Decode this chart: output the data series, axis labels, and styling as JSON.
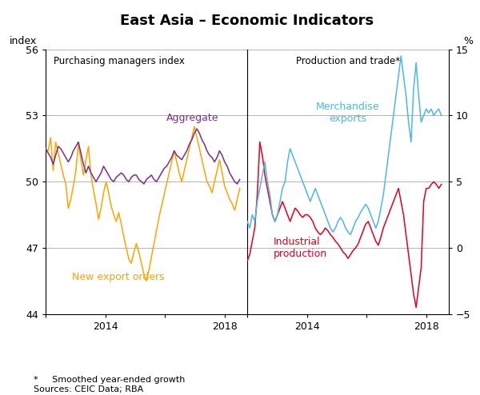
{
  "title": "East Asia – Economic Indicators",
  "left_panel_title": "Purchasing managers index",
  "right_panel_title": "Production and trade*",
  "left_ylabel": "index",
  "right_ylabel": "%",
  "left_ylim": [
    44,
    56
  ],
  "right_ylim": [
    -5,
    15
  ],
  "left_yticks": [
    44,
    47,
    50,
    53,
    56
  ],
  "right_yticks": [
    -5,
    0,
    5,
    10,
    15
  ],
  "xlim": [
    2012.0,
    2018.75
  ],
  "xticks": [
    2012,
    2014,
    2016,
    2018
  ],
  "footnote": "*     Smoothed year-ended growth\nSources: CEIC Data; RBA",
  "color_aggregate": "#7B2D8B",
  "color_new_export": "#FFA500",
  "color_merchandise": "#4DB8E8",
  "color_industrial": "#E8001C",
  "label_aggregate": "Aggregate",
  "label_new_export": "New export orders",
  "label_merchandise": "Merchandise\nexports",
  "label_industrial": "Industrial\nproduction",
  "grid_color": "#AAAAAA",
  "background_color": "#FFFFFF",
  "agg_pmi": [
    51.5,
    51.3,
    51.1,
    50.8,
    51.2,
    51.6,
    51.5,
    51.3,
    51.1,
    50.9,
    51.1,
    51.4,
    51.6,
    51.8,
    51.3,
    50.8,
    50.4,
    50.7,
    50.4,
    50.2,
    50.0,
    50.2,
    50.4,
    50.7,
    50.5,
    50.3,
    50.1,
    50.0,
    50.2,
    50.3,
    50.4,
    50.3,
    50.1,
    50.0,
    50.2,
    50.3,
    50.3,
    50.1,
    50.0,
    49.9,
    50.1,
    50.2,
    50.3,
    50.1,
    50.0,
    50.2,
    50.4,
    50.6,
    50.7,
    50.9,
    51.1,
    51.4,
    51.2,
    51.1,
    51.0,
    51.2,
    51.4,
    51.7,
    51.9,
    52.2,
    52.4,
    52.2,
    51.9,
    51.7,
    51.4,
    51.2,
    51.1,
    50.9,
    51.1,
    51.4,
    51.2,
    50.9,
    50.7,
    50.4,
    50.2,
    50.0,
    49.9,
    50.1
  ],
  "neo_pmi": [
    51.5,
    51.4,
    52.0,
    50.5,
    51.8,
    51.3,
    50.8,
    50.3,
    49.9,
    48.8,
    49.2,
    49.8,
    50.5,
    51.7,
    51.0,
    50.3,
    51.0,
    51.6,
    50.3,
    49.6,
    49.0,
    48.3,
    48.8,
    49.5,
    50.0,
    49.5,
    48.9,
    48.5,
    48.2,
    48.6,
    48.1,
    47.5,
    47.0,
    46.5,
    46.3,
    46.8,
    47.2,
    46.8,
    46.3,
    45.8,
    45.5,
    46.0,
    46.6,
    47.2,
    47.8,
    48.4,
    48.9,
    49.4,
    49.9,
    50.4,
    50.9,
    51.4,
    50.9,
    50.4,
    50.0,
    50.5,
    51.0,
    51.5,
    52.0,
    52.5,
    52.0,
    51.5,
    51.0,
    50.5,
    50.0,
    49.8,
    49.5,
    50.0,
    50.5,
    51.0,
    50.4,
    49.8,
    49.5,
    49.2,
    49.0,
    48.7,
    49.2,
    49.7
  ],
  "merch_exports": [
    2.0,
    1.5,
    2.5,
    2.0,
    3.5,
    4.5,
    5.5,
    6.5,
    5.0,
    4.0,
    2.5,
    2.0,
    2.5,
    3.5,
    4.5,
    5.0,
    6.5,
    7.5,
    7.0,
    6.5,
    6.0,
    5.5,
    5.0,
    4.5,
    4.0,
    3.5,
    4.0,
    4.5,
    4.0,
    3.5,
    3.0,
    2.5,
    2.0,
    1.5,
    1.2,
    1.5,
    2.0,
    2.3,
    2.0,
    1.5,
    1.2,
    1.0,
    1.5,
    2.0,
    2.3,
    2.7,
    3.0,
    3.3,
    3.0,
    2.5,
    2.0,
    1.5,
    2.0,
    3.0,
    4.0,
    5.5,
    7.0,
    8.5,
    10.0,
    11.5,
    13.0,
    14.5,
    13.0,
    11.5,
    9.5,
    8.0,
    12.0,
    14.0,
    11.5,
    9.5,
    10.0,
    10.5,
    10.2,
    10.5,
    10.0,
    10.3,
    10.5,
    10.0
  ],
  "ind_prod": [
    -1.0,
    -0.5,
    0.5,
    1.5,
    4.0,
    8.0,
    7.0,
    5.5,
    4.5,
    3.5,
    2.5,
    2.0,
    2.5,
    3.0,
    3.5,
    3.0,
    2.5,
    2.0,
    2.5,
    3.0,
    2.8,
    2.5,
    2.3,
    2.5,
    2.5,
    2.3,
    2.0,
    1.5,
    1.2,
    1.0,
    1.2,
    1.5,
    1.3,
    1.0,
    0.8,
    0.5,
    0.3,
    0.0,
    -0.3,
    -0.5,
    -0.8,
    -0.5,
    -0.2,
    0.0,
    0.3,
    0.8,
    1.3,
    1.8,
    2.0,
    1.5,
    1.0,
    0.5,
    0.2,
    0.8,
    1.5,
    2.0,
    2.5,
    3.0,
    3.5,
    4.0,
    4.5,
    3.5,
    2.5,
    1.0,
    -0.5,
    -2.0,
    -3.5,
    -4.5,
    -3.0,
    -1.5,
    3.5,
    4.5,
    4.5,
    4.8,
    5.0,
    4.8,
    4.5,
    4.8
  ]
}
